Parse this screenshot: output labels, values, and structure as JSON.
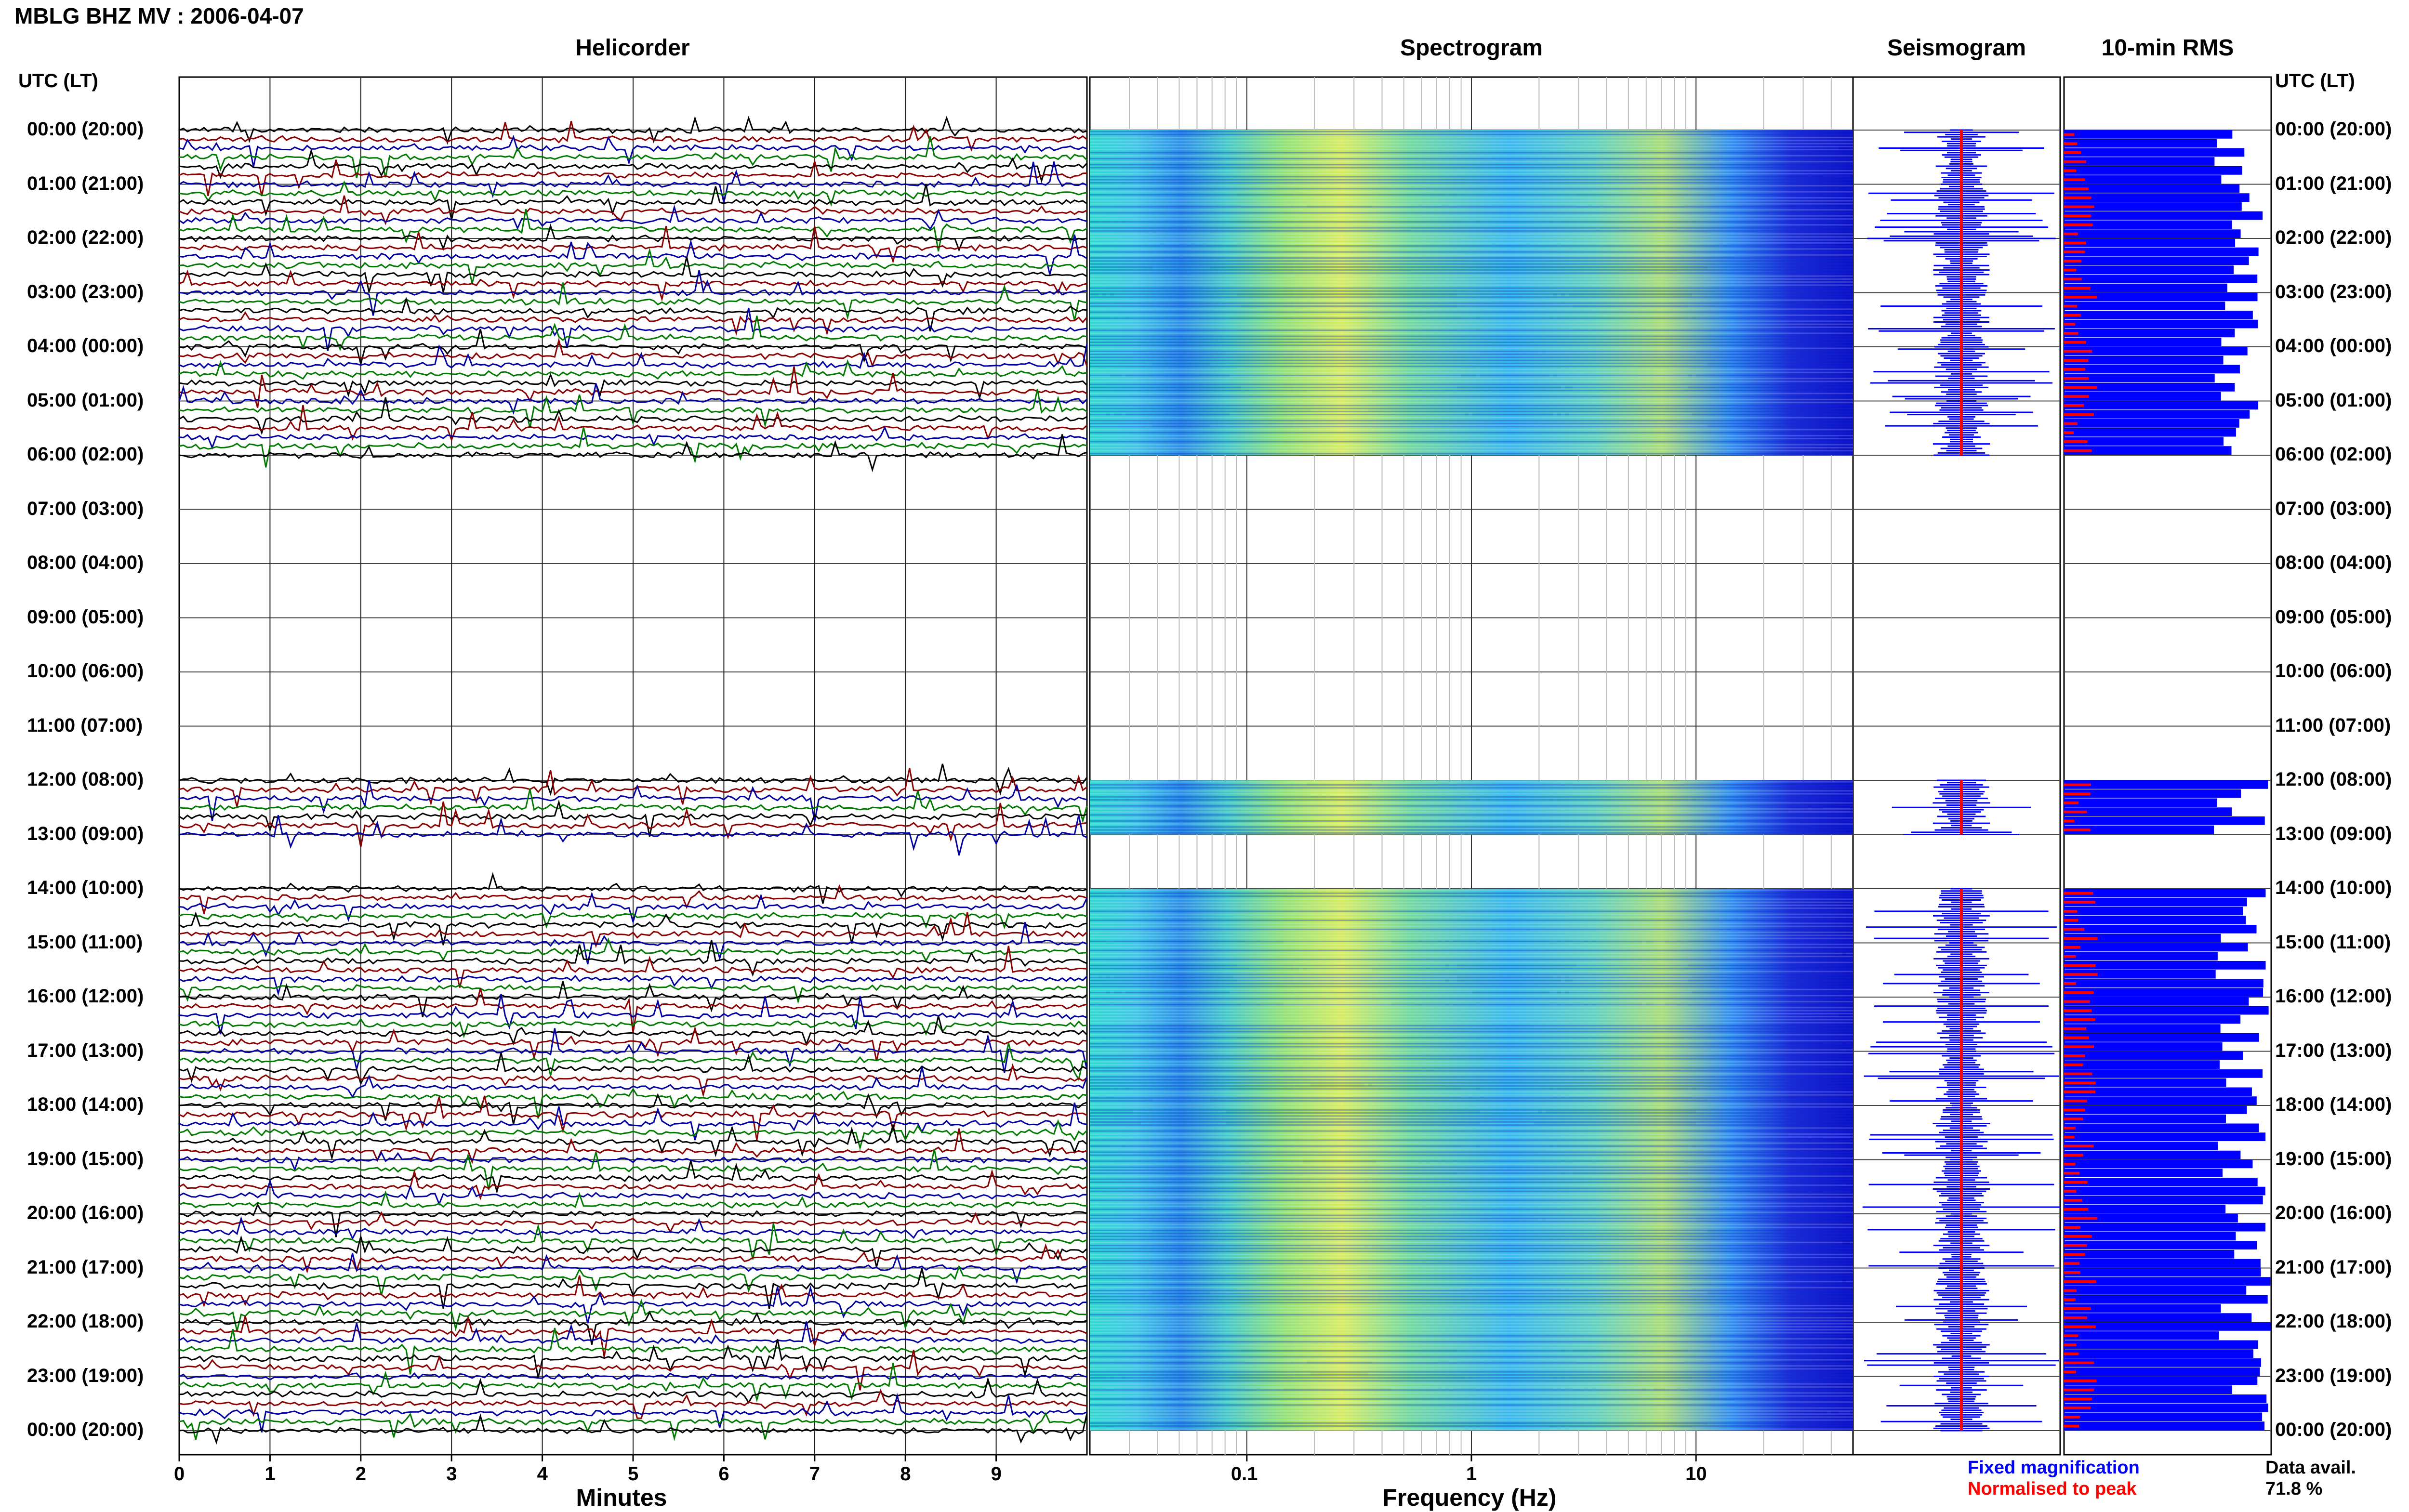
{
  "header": {
    "title": "MBLG BHZ MV : 2006-04-07"
  },
  "panels": {
    "helicorder": "Helicorder",
    "spectrogram": "Spectrogram",
    "seismogram": "Seismogram",
    "rms": "10-min RMS"
  },
  "axes": {
    "y_header_left": "UTC (LT)",
    "y_header_right": "UTC (LT)",
    "helicorder_xlabel": "Minutes",
    "spectrogram_xlabel": "Frequency (Hz)"
  },
  "legend": {
    "fixed": "Fixed magnification",
    "normalised": "Normalised to peak",
    "data_avail_label": "Data avail.",
    "data_avail_value": "71.8 %"
  },
  "colors": {
    "trace_cycle": [
      "#000000",
      "#8b0000",
      "#0000a0",
      "#007a00"
    ],
    "fixed_magnification": "#0000ff",
    "normalised_to_peak": "#ff0000",
    "rms_bar": "#0000ff",
    "rms_peak": "#ff0000"
  },
  "chart_data": {
    "type": "heatmap",
    "time_labels": [
      "00:00 (20:00)",
      "01:00 (21:00)",
      "02:00 (22:00)",
      "03:00 (23:00)",
      "04:00 (00:00)",
      "05:00 (01:00)",
      "06:00 (02:00)",
      "07:00 (03:00)",
      "08:00 (04:00)",
      "09:00 (05:00)",
      "10:00 (06:00)",
      "11:00 (07:00)",
      "12:00 (08:00)",
      "13:00 (09:00)",
      "14:00 (10:00)",
      "15:00 (11:00)",
      "16:00 (12:00)",
      "17:00 (13:00)",
      "18:00 (14:00)",
      "19:00 (15:00)",
      "20:00 (16:00)",
      "21:00 (17:00)",
      "22:00 (18:00)",
      "23:00 (19:00)",
      "00:00 (20:00)"
    ],
    "helicorder": {
      "x_ticks": [
        "0",
        "1",
        "2",
        "3",
        "4",
        "5",
        "6",
        "7",
        "8",
        "9"
      ],
      "xlim": [
        0,
        10
      ],
      "xlabel": "Minutes"
    },
    "spectrogram": {
      "x_ticks": [
        "0.1",
        "1",
        "10"
      ],
      "x_tick_values": [
        0.1,
        1,
        10
      ],
      "xlim": [
        0.02,
        50
      ],
      "xscale": "log",
      "xlabel": "Frequency (Hz)"
    },
    "data_segments_hours": [
      [
        0,
        6
      ],
      [
        12,
        13
      ],
      [
        14,
        24
      ]
    ],
    "data_availability_percent": 71.8
  }
}
